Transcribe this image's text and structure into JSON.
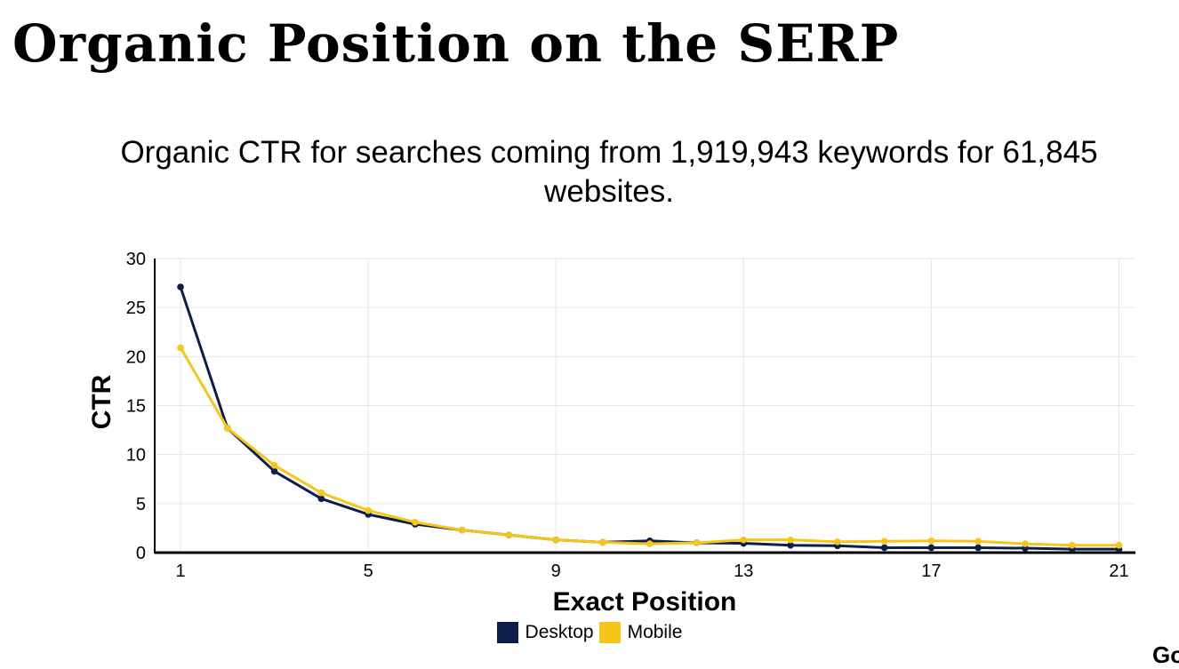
{
  "header": {
    "title": "Organic Position on the SERP",
    "subtitle": "Organic CTR for searches coming from 1,919,943 keywords for 61,845 websites."
  },
  "corner_logo": "Go",
  "chart_data": {
    "type": "line",
    "title": "",
    "xlabel": "Exact Position",
    "ylabel": "CTR",
    "x": [
      1,
      2,
      3,
      4,
      5,
      6,
      7,
      8,
      9,
      10,
      11,
      12,
      13,
      14,
      15,
      16,
      17,
      18,
      19,
      20,
      21
    ],
    "xticks": [
      1,
      5,
      9,
      13,
      17,
      21
    ],
    "yticks": [
      0,
      5,
      10,
      15,
      20,
      25,
      30
    ],
    "xlim": [
      0.45,
      21.35
    ],
    "ylim": [
      0,
      30
    ],
    "grid": true,
    "legend": "bottom-center",
    "series": [
      {
        "name": "Desktop",
        "color": "#0e1e4a",
        "values": [
          27.1,
          12.7,
          8.3,
          5.5,
          3.9,
          2.9,
          2.3,
          1.8,
          1.3,
          1.05,
          1.2,
          1.0,
          0.95,
          0.75,
          0.7,
          0.5,
          0.5,
          0.5,
          0.45,
          0.35,
          0.35
        ]
      },
      {
        "name": "Mobile",
        "color": "#f5c518",
        "values": [
          20.9,
          12.7,
          8.9,
          6.1,
          4.3,
          3.1,
          2.3,
          1.8,
          1.3,
          1.05,
          0.9,
          1.0,
          1.3,
          1.3,
          1.1,
          1.15,
          1.2,
          1.15,
          0.9,
          0.75,
          0.75
        ]
      }
    ]
  }
}
